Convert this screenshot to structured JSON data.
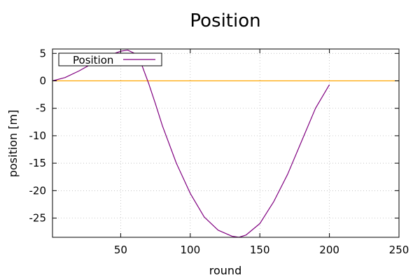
{
  "chart_data": {
    "type": "line",
    "title": "Position",
    "xlabel": "round",
    "ylabel": "position [m]",
    "xlim": [
      1,
      250
    ],
    "ylim": [
      -28.5,
      5.8
    ],
    "xticks": [
      50,
      100,
      150,
      200,
      250
    ],
    "yticks": [
      5,
      0,
      -5,
      -10,
      -15,
      -20,
      -25
    ],
    "grid": true,
    "legend": {
      "placement": "top-left"
    },
    "series": [
      {
        "name": "Position",
        "color": "#800080",
        "x": [
          1,
          10,
          20,
          30,
          40,
          50,
          55,
          60,
          65,
          70,
          75,
          80,
          90,
          100,
          110,
          120,
          130,
          135,
          140,
          150,
          160,
          170,
          180,
          190,
          200
        ],
        "y": [
          0.0,
          0.6,
          1.8,
          3.2,
          4.5,
          5.4,
          5.6,
          5.0,
          3.0,
          -0.4,
          -4.2,
          -8.2,
          -15.0,
          -20.5,
          -24.8,
          -27.2,
          -28.3,
          -28.5,
          -28.1,
          -26.0,
          -22.0,
          -17.0,
          -11.0,
          -5.0,
          -0.7
        ]
      },
      {
        "color": "#ffa500",
        "x": [
          1,
          250
        ],
        "y": [
          0,
          0
        ]
      }
    ]
  }
}
